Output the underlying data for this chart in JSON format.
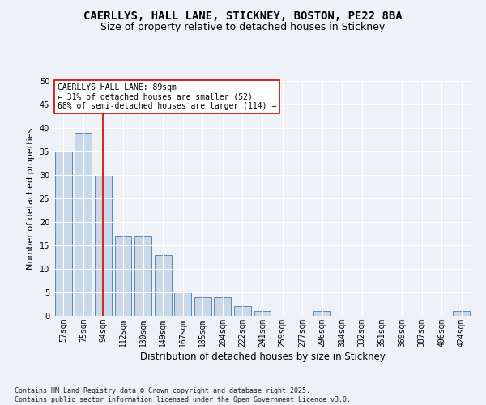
{
  "title_line1": "CAERLLYS, HALL LANE, STICKNEY, BOSTON, PE22 8BA",
  "title_line2": "Size of property relative to detached houses in Stickney",
  "xlabel": "Distribution of detached houses by size in Stickney",
  "ylabel": "Number of detached properties",
  "categories": [
    "57sqm",
    "75sqm",
    "94sqm",
    "112sqm",
    "130sqm",
    "149sqm",
    "167sqm",
    "185sqm",
    "204sqm",
    "222sqm",
    "241sqm",
    "259sqm",
    "277sqm",
    "296sqm",
    "314sqm",
    "332sqm",
    "351sqm",
    "369sqm",
    "387sqm",
    "406sqm",
    "424sqm"
  ],
  "values": [
    35,
    39,
    30,
    17,
    17,
    13,
    5,
    4,
    4,
    2,
    1,
    0,
    0,
    1,
    0,
    0,
    0,
    0,
    0,
    0,
    1
  ],
  "bar_color": "#c8d8e8",
  "bar_edge_color": "#5a8ab0",
  "property_line_index": 2,
  "property_line_color": "#cc0000",
  "annotation_text": "CAERLLYS HALL LANE: 89sqm\n← 31% of detached houses are smaller (52)\n68% of semi-detached houses are larger (114) →",
  "annotation_box_color": "#ffffff",
  "annotation_box_edge": "#cc0000",
  "ylim": [
    0,
    50
  ],
  "yticks": [
    0,
    5,
    10,
    15,
    20,
    25,
    30,
    35,
    40,
    45,
    50
  ],
  "background_color": "#eef2f7",
  "plot_bg_color": "#eef2f7",
  "footer_text": "Contains HM Land Registry data © Crown copyright and database right 2025.\nContains public sector information licensed under the Open Government Licence v3.0.",
  "title_fontsize": 10,
  "subtitle_fontsize": 9,
  "tick_fontsize": 7,
  "xlabel_fontsize": 8.5,
  "ylabel_fontsize": 8
}
